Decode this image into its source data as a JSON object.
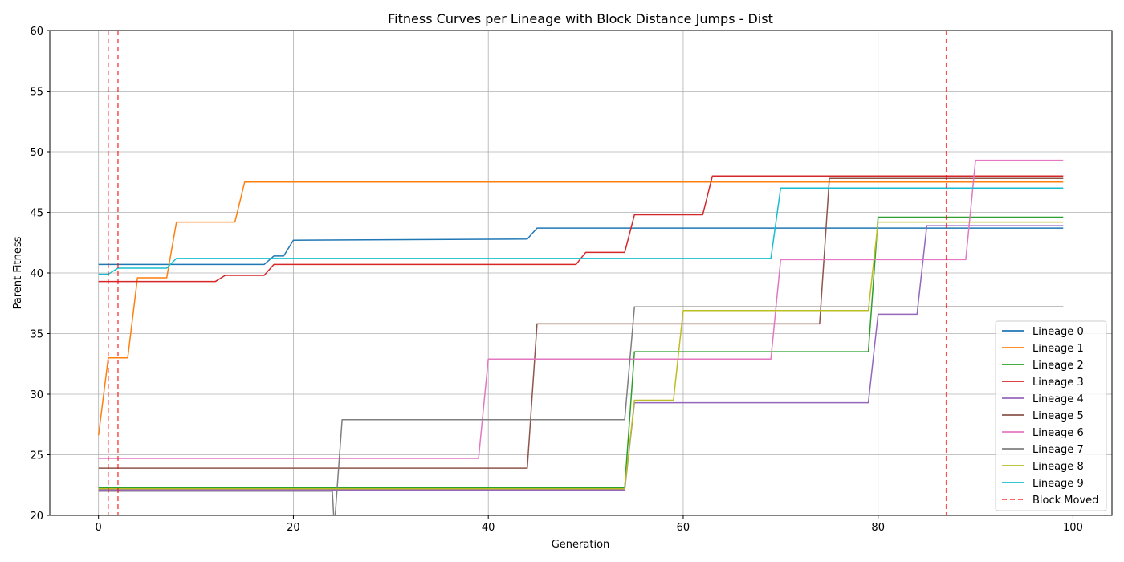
{
  "chart_data": {
    "type": "line",
    "title": "Fitness Curves per Lineage with Block Distance Jumps - Dist",
    "xlabel": "Generation",
    "ylabel": "Parent Fitness",
    "xlim": [
      -5,
      104
    ],
    "ylim": [
      20,
      60
    ],
    "xticks": [
      0,
      20,
      40,
      60,
      80,
      100
    ],
    "yticks": [
      20,
      25,
      30,
      35,
      40,
      45,
      50,
      55,
      60
    ],
    "grid": true,
    "legend_position": "bottom-right",
    "series": [
      {
        "name": "Lineage 0",
        "color": "#1f77b4",
        "points": [
          [
            0,
            40.7
          ],
          [
            1,
            40.7
          ],
          [
            2,
            40.7
          ],
          [
            17,
            40.7
          ],
          [
            18,
            41.4
          ],
          [
            19,
            41.4
          ],
          [
            20,
            42.7
          ],
          [
            44,
            42.8
          ],
          [
            45,
            43.7
          ],
          [
            99,
            43.7
          ]
        ]
      },
      {
        "name": "Lineage 1",
        "color": "#ff7f0e",
        "points": [
          [
            0,
            26.6
          ],
          [
            1,
            33.0
          ],
          [
            3,
            33.0
          ],
          [
            4,
            39.6
          ],
          [
            7,
            39.6
          ],
          [
            8,
            44.2
          ],
          [
            14,
            44.2
          ],
          [
            15,
            47.5
          ],
          [
            99,
            47.5
          ]
        ]
      },
      {
        "name": "Lineage 2",
        "color": "#2ca02c",
        "points": [
          [
            0,
            22.3
          ],
          [
            54,
            22.3
          ],
          [
            55,
            33.5
          ],
          [
            79,
            33.5
          ],
          [
            80,
            44.6
          ],
          [
            99,
            44.6
          ]
        ]
      },
      {
        "name": "Lineage 3",
        "color": "#d62728",
        "points": [
          [
            0,
            39.3
          ],
          [
            12,
            39.3
          ],
          [
            13,
            39.8
          ],
          [
            17,
            39.8
          ],
          [
            18,
            40.7
          ],
          [
            49,
            40.7
          ],
          [
            50,
            41.7
          ],
          [
            54,
            41.7
          ],
          [
            55,
            44.8
          ],
          [
            62,
            44.8
          ],
          [
            63,
            48.0
          ],
          [
            99,
            48.0
          ]
        ]
      },
      {
        "name": "Lineage 4",
        "color": "#9467bd",
        "points": [
          [
            0,
            22.1
          ],
          [
            54,
            22.1
          ],
          [
            55,
            29.3
          ],
          [
            79,
            29.3
          ],
          [
            80,
            36.6
          ],
          [
            84,
            36.6
          ],
          [
            85,
            43.9
          ],
          [
            99,
            43.9
          ]
        ]
      },
      {
        "name": "Lineage 5",
        "color": "#8c564b",
        "points": [
          [
            0,
            23.9
          ],
          [
            44,
            23.9
          ],
          [
            45,
            35.8
          ],
          [
            74,
            35.8
          ],
          [
            75,
            47.8
          ],
          [
            99,
            47.8
          ]
        ]
      },
      {
        "name": "Lineage 6",
        "color": "#e377c2",
        "points": [
          [
            0,
            24.7
          ],
          [
            39,
            24.7
          ],
          [
            40,
            32.9
          ],
          [
            69,
            32.9
          ],
          [
            70,
            41.1
          ],
          [
            89,
            41.1
          ],
          [
            90,
            49.3
          ],
          [
            99,
            49.3
          ]
        ]
      },
      {
        "name": "Lineage 7",
        "color": "#7f7f7f",
        "points": [
          [
            0,
            22.0
          ],
          [
            24,
            22.0
          ],
          [
            24.2,
            19.0
          ],
          [
            25,
            27.9
          ],
          [
            54,
            27.9
          ],
          [
            55,
            37.2
          ],
          [
            99,
            37.2
          ]
        ]
      },
      {
        "name": "Lineage 8",
        "color": "#bcbd22",
        "points": [
          [
            0,
            22.2
          ],
          [
            54,
            22.2
          ],
          [
            55,
            29.5
          ],
          [
            59,
            29.5
          ],
          [
            60,
            36.9
          ],
          [
            79,
            36.9
          ],
          [
            80,
            44.2
          ],
          [
            99,
            44.2
          ]
        ]
      },
      {
        "name": "Lineage 9",
        "color": "#17becf",
        "points": [
          [
            0,
            39.9
          ],
          [
            1,
            39.9
          ],
          [
            2,
            40.4
          ],
          [
            7,
            40.4
          ],
          [
            8,
            41.2
          ],
          [
            69,
            41.2
          ],
          [
            70,
            47.0
          ],
          [
            99,
            47.0
          ]
        ]
      }
    ],
    "block_moved": {
      "name": "Block Moved",
      "color": "#ff0000",
      "x": [
        1,
        2,
        87
      ]
    }
  }
}
